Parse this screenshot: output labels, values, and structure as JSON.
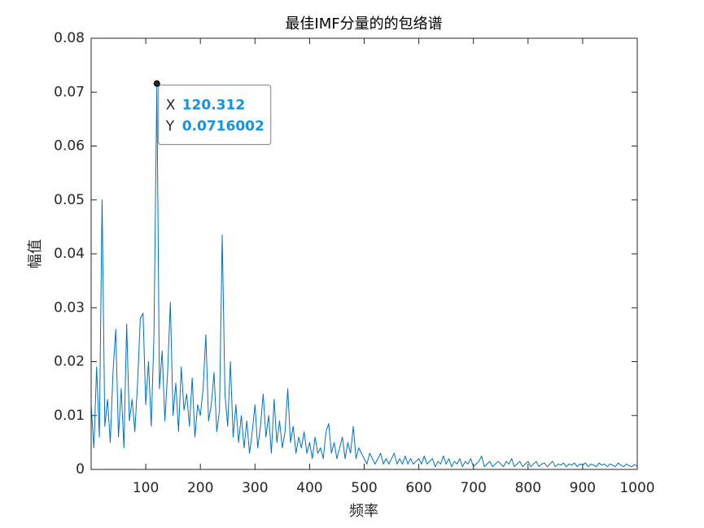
{
  "chart_data": {
    "type": "line",
    "title": "最佳IMF分量的的包络谱",
    "x_label": "频率",
    "y_label": "幅值",
    "xlim": [
      0,
      1000
    ],
    "ylim": [
      0,
      0.08
    ],
    "xticks": [
      100,
      200,
      300,
      400,
      500,
      600,
      700,
      800,
      900,
      1000
    ],
    "yticks": [
      0,
      0.01,
      0.02,
      0.03,
      0.04,
      0.05,
      0.06,
      0.07,
      0.08
    ],
    "color": "#0072bd",
    "datatip": {
      "x_label": "X",
      "y_label": "Y",
      "x": 120.312,
      "y": 0.0716002
    },
    "x": [
      0,
      5,
      10,
      15,
      20,
      25,
      30,
      35,
      40,
      45,
      50,
      55,
      60,
      65,
      70,
      75,
      80,
      85,
      90,
      95,
      100,
      105,
      110,
      115,
      120.312,
      125,
      130,
      135,
      140,
      145,
      150,
      155,
      160,
      165,
      170,
      175,
      180,
      185,
      190,
      195,
      200,
      205,
      210,
      215,
      220,
      225,
      230,
      235,
      240,
      245,
      250,
      255,
      260,
      265,
      270,
      275,
      280,
      285,
      290,
      295,
      300,
      305,
      310,
      315,
      320,
      325,
      330,
      335,
      340,
      345,
      350,
      355,
      360,
      365,
      370,
      375,
      380,
      385,
      390,
      395,
      400,
      405,
      410,
      415,
      420,
      425,
      430,
      435,
      440,
      445,
      450,
      455,
      460,
      465,
      470,
      475,
      480,
      485,
      490,
      495,
      500,
      505,
      510,
      515,
      520,
      525,
      530,
      535,
      540,
      545,
      550,
      555,
      560,
      565,
      570,
      575,
      580,
      585,
      590,
      595,
      600,
      605,
      610,
      615,
      620,
      625,
      630,
      635,
      640,
      645,
      650,
      655,
      660,
      665,
      670,
      675,
      680,
      685,
      690,
      695,
      700,
      705,
      710,
      715,
      720,
      725,
      730,
      735,
      740,
      745,
      750,
      755,
      760,
      765,
      770,
      775,
      780,
      785,
      790,
      795,
      800,
      805,
      810,
      815,
      820,
      825,
      830,
      835,
      840,
      845,
      850,
      855,
      860,
      865,
      870,
      875,
      880,
      885,
      890,
      895,
      900,
      905,
      910,
      915,
      920,
      925,
      930,
      935,
      940,
      945,
      950,
      955,
      960,
      965,
      970,
      975,
      980,
      985,
      990,
      995,
      1000
    ],
    "values": [
      0.012,
      0.004,
      0.019,
      0.006,
      0.05,
      0.008,
      0.013,
      0.005,
      0.018,
      0.026,
      0.006,
      0.015,
      0.004,
      0.027,
      0.009,
      0.013,
      0.007,
      0.016,
      0.028,
      0.029,
      0.012,
      0.02,
      0.008,
      0.025,
      0.0716002,
      0.015,
      0.022,
      0.009,
      0.018,
      0.031,
      0.01,
      0.016,
      0.007,
      0.019,
      0.011,
      0.014,
      0.008,
      0.017,
      0.006,
      0.012,
      0.01,
      0.015,
      0.025,
      0.009,
      0.012,
      0.018,
      0.007,
      0.011,
      0.0435,
      0.014,
      0.008,
      0.02,
      0.006,
      0.012,
      0.005,
      0.01,
      0.004,
      0.009,
      0.003,
      0.007,
      0.012,
      0.004,
      0.008,
      0.014,
      0.006,
      0.01,
      0.003,
      0.013,
      0.005,
      0.009,
      0.004,
      0.007,
      0.015,
      0.005,
      0.008,
      0.003,
      0.006,
      0.004,
      0.007,
      0.003,
      0.005,
      0.002,
      0.006,
      0.003,
      0.004,
      0.002,
      0.007,
      0.0085,
      0.003,
      0.005,
      0.002,
      0.004,
      0.006,
      0.002,
      0.005,
      0.003,
      0.008,
      0.002,
      0.004,
      0.003,
      0.002,
      0.001,
      0.003,
      0.002,
      0.001,
      0.002,
      0.003,
      0.001,
      0.002,
      0.001,
      0.002,
      0.003,
      0.001,
      0.002,
      0.001,
      0.0025,
      0.001,
      0.002,
      0.001,
      0.0015,
      0.002,
      0.001,
      0.0025,
      0.001,
      0.0015,
      0.002,
      0.0005,
      0.0015,
      0.001,
      0.0025,
      0.001,
      0.002,
      0.0005,
      0.0015,
      0.001,
      0.002,
      0.0005,
      0.0015,
      0.001,
      0.002,
      0.0005,
      0.001,
      0.0015,
      0.0025,
      0.0005,
      0.001,
      0.0015,
      0.0005,
      0.001,
      0.0015,
      0.001,
      0.0005,
      0.0015,
      0.001,
      0.002,
      0.0005,
      0.001,
      0.0015,
      0.0005,
      0.001,
      0.0015,
      0.0005,
      0.001,
      0.0015,
      0.0005,
      0.001,
      0.0012,
      0.0005,
      0.001,
      0.0015,
      0.0005,
      0.001,
      0.0008,
      0.0012,
      0.0005,
      0.001,
      0.0008,
      0.0012,
      0.0005,
      0.001,
      0.0008,
      0.0012,
      0.0005,
      0.001,
      0.0008,
      0.0005,
      0.0012,
      0.0008,
      0.001,
      0.0005,
      0.001,
      0.0008,
      0.0005,
      0.0012,
      0.0008,
      0.0005,
      0.001,
      0.0007,
      0.0005,
      0.0009,
      0.0006
    ]
  }
}
